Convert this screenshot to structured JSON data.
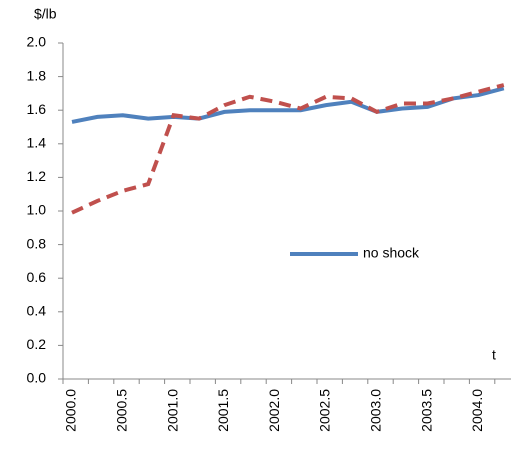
{
  "chart_data": {
    "type": "line",
    "y_label": "$/lb",
    "x_label": "t",
    "categories": [
      "2000.0",
      null,
      "2000.5",
      null,
      "2001.0",
      null,
      "2001.5",
      null,
      "2002.0",
      null,
      "2002.5",
      null,
      "2003.0",
      null,
      "2003.5",
      null,
      "2004.0",
      null
    ],
    "series": [
      {
        "name": "no shock",
        "color": "#4f81bd",
        "dash": false,
        "values": [
          1.53,
          1.56,
          1.57,
          1.55,
          1.56,
          1.55,
          1.59,
          1.6,
          1.6,
          1.6,
          1.63,
          1.65,
          1.59,
          1.61,
          1.62,
          1.67,
          1.69,
          1.73
        ]
      },
      {
        "color": "#c0504d",
        "dash": true,
        "values": [
          0.99,
          1.06,
          1.12,
          1.16,
          1.57,
          1.55,
          1.63,
          1.68,
          1.65,
          1.61,
          1.68,
          1.67,
          1.59,
          1.64,
          1.64,
          1.67,
          1.71,
          1.75
        ]
      }
    ],
    "ylim": [
      0,
      2
    ],
    "yticks": [
      {
        "value": 0,
        "label": "0.0"
      },
      {
        "value": 0.2,
        "label": "0.2"
      },
      {
        "value": 0.4,
        "label": "0.4"
      },
      {
        "value": 0.6,
        "label": "0.6"
      },
      {
        "value": 0.8,
        "label": "0.8"
      },
      {
        "value": 1,
        "label": "1.0"
      },
      {
        "value": 1.2,
        "label": "1.2"
      },
      {
        "value": 1.4,
        "label": "1.4"
      },
      {
        "value": 1.6,
        "label": "1.6"
      },
      {
        "value": 1.8,
        "label": "1.8"
      },
      {
        "value": 2,
        "label": "2.0"
      }
    ],
    "grid": false
  }
}
